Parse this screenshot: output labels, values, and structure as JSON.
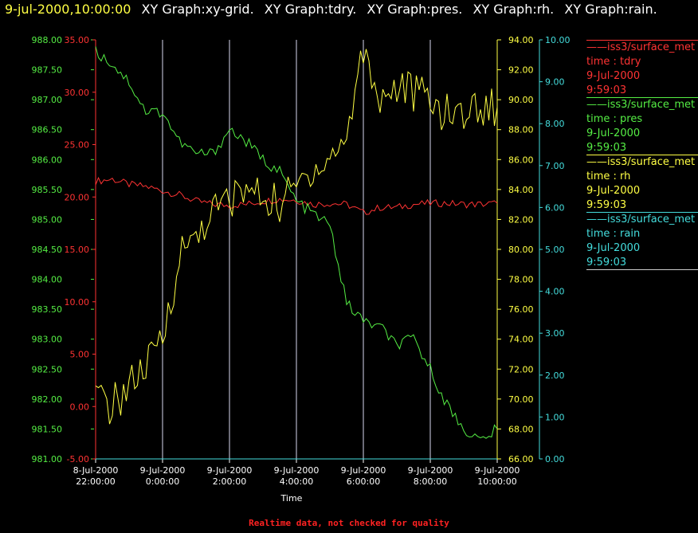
{
  "header": {
    "date": "9-jul-2000,10:00:00",
    "graphs": [
      "XY Graph:xy-grid.",
      "XY Graph:tdry.",
      "XY Graph:pres.",
      "XY Graph:rh.",
      "XY Graph:rain."
    ]
  },
  "legend": [
    {
      "source": "iss3/surface_met",
      "field": "time : tdry",
      "date": "9-Jul-2000",
      "time": "9:59:03",
      "color": "#ff3333"
    },
    {
      "source": "iss3/surface_met",
      "field": "time : pres",
      "date": "9-Jul-2000",
      "time": "9:59:03",
      "color": "#55ee44"
    },
    {
      "source": "iss3/surface_met",
      "field": "time : rh",
      "date": "9-Jul-2000",
      "time": "9:59:03",
      "color": "#ffff44"
    },
    {
      "source": "iss3/surface_met",
      "field": "time : rain",
      "date": "9-Jul-2000",
      "time": "9:59:03",
      "color": "#44dddd"
    }
  ],
  "footer": "Realtime data, not checked for quality",
  "chart_data": {
    "type": "line",
    "xlabel": "Time",
    "x_ticks": [
      {
        "date": "8-Jul-2000",
        "time": "22:00:00"
      },
      {
        "date": "9-Jul-2000",
        "time": "0:00:00"
      },
      {
        "date": "9-Jul-2000",
        "time": "2:00:00"
      },
      {
        "date": "9-Jul-2000",
        "time": "4:00:00"
      },
      {
        "date": "9-Jul-2000",
        "time": "6:00:00"
      },
      {
        "date": "9-Jul-2000",
        "time": "8:00:00"
      },
      {
        "date": "9-Jul-2000",
        "time": "10:00:00"
      }
    ],
    "grid_vertical": true,
    "axes": {
      "pres": {
        "color": "#55ee44",
        "range": [
          981.0,
          988.0
        ],
        "ticks": [
          "981.00",
          "981.50",
          "982.00",
          "982.50",
          "983.00",
          "983.50",
          "984.00",
          "984.50",
          "985.00",
          "985.50",
          "986.00",
          "986.50",
          "987.00",
          "987.50",
          "988.00"
        ]
      },
      "tdry": {
        "color": "#ff3333",
        "range": [
          -5,
          35
        ],
        "ticks": [
          "-5.00",
          "0.00",
          "5.00",
          "10.00",
          "15.00",
          "20.00",
          "25.00",
          "30.00",
          "35.00"
        ]
      },
      "rh": {
        "color": "#ffff44",
        "range": [
          66,
          94
        ],
        "ticks": [
          "66.00",
          "68.00",
          "70.00",
          "72.00",
          "74.00",
          "76.00",
          "78.00",
          "80.00",
          "82.00",
          "84.00",
          "86.00",
          "88.00",
          "90.00",
          "92.00",
          "94.00"
        ]
      },
      "rain": {
        "color": "#44dddd",
        "range": [
          0,
          10
        ],
        "ticks": [
          "0.00",
          "1.00",
          "2.00",
          "3.00",
          "4.00",
          "5.00",
          "6.00",
          "7.00",
          "8.00",
          "9.00",
          "10.00"
        ]
      }
    },
    "series": [
      {
        "name": "tdry",
        "axis": "tdry",
        "color": "#ff3333",
        "x": [
          "8-Jul-2000 22:00",
          "22:30",
          "23:00",
          "23:30",
          "0:00",
          "0:30",
          "1:00",
          "1:30",
          "2:00",
          "2:30",
          "3:00",
          "3:30",
          "4:00",
          "4:30",
          "5:00",
          "5:30",
          "6:00",
          "6:30",
          "7:00",
          "7:30",
          "8:00",
          "8:30",
          "9:00",
          "9:30",
          "10:00"
        ],
        "y": [
          21.5,
          21.7,
          21.2,
          21.0,
          20.6,
          20.2,
          19.6,
          19.3,
          19.2,
          19.3,
          19.6,
          19.8,
          19.7,
          19.3,
          19.4,
          19.3,
          18.5,
          19.0,
          19.0,
          19.3,
          19.4,
          19.4,
          19.3,
          19.3,
          19.4
        ]
      },
      {
        "name": "pres",
        "axis": "pres",
        "color": "#55ee44",
        "x": [
          "8-Jul-2000 22:00",
          "22:30",
          "23:00",
          "23:30",
          "0:00",
          "0:30",
          "1:00",
          "1:30",
          "2:00",
          "2:30",
          "3:00",
          "3:30",
          "4:00",
          "4:30",
          "5:00",
          "5:30",
          "6:00",
          "6:30",
          "7:00",
          "7:30",
          "8:00",
          "8:30",
          "9:00",
          "9:30",
          "10:00"
        ],
        "y": [
          987.8,
          987.6,
          987.3,
          986.8,
          986.8,
          986.3,
          986.1,
          986.1,
          986.5,
          986.3,
          986.0,
          985.8,
          985.3,
          985.1,
          984.9,
          983.6,
          983.3,
          983.2,
          982.9,
          983.0,
          982.5,
          981.9,
          981.5,
          981.3,
          981.5
        ]
      },
      {
        "name": "rh",
        "axis": "rh",
        "color": "#ffff44",
        "x": [
          "8-Jul-2000 22:00",
          "22:30",
          "23:00",
          "23:30",
          "0:00",
          "0:30",
          "1:00",
          "1:30",
          "2:00",
          "2:30",
          "3:00",
          "3:30",
          "4:00",
          "4:30",
          "5:00",
          "5:30",
          "6:00",
          "6:30",
          "7:00",
          "7:30",
          "8:00",
          "8:30",
          "9:00",
          "9:30",
          "10:00"
        ],
        "y": [
          70.0,
          69.5,
          71.0,
          72.0,
          74.0,
          79.5,
          81.0,
          82.5,
          83.3,
          84.0,
          83.5,
          83.0,
          84.2,
          85.5,
          86.0,
          87.5,
          93.5,
          90.0,
          91.0,
          90.5,
          90.0,
          89.0,
          89.2,
          89.5,
          89.5
        ]
      },
      {
        "name": "rain",
        "axis": "rain",
        "color": "#44dddd",
        "x": [
          "8-Jul-2000 22:00",
          "10:00"
        ],
        "y": [
          0,
          0
        ]
      }
    ]
  }
}
